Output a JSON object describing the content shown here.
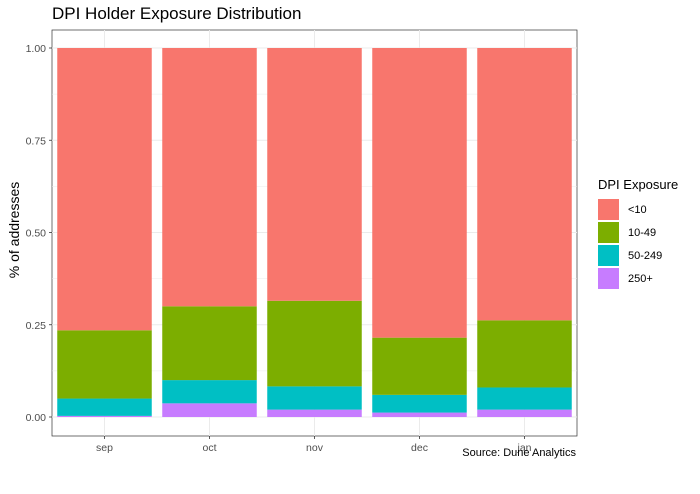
{
  "chart_data": {
    "type": "bar",
    "stacked": true,
    "title": "DPI Holder Exposure Distribution",
    "xlabel": "",
    "ylabel": "% of addresses",
    "caption": "Source: Dune Analytics",
    "categories": [
      "sep",
      "oct",
      "nov",
      "dec",
      "jan"
    ],
    "ylim": [
      0,
      1
    ],
    "yticks": [
      0,
      0.25,
      0.5,
      0.75,
      1
    ],
    "ytick_labels": [
      "0.00",
      "0.25",
      "0.50",
      "0.75",
      "1.00"
    ],
    "legend_title": "DPI Exposure",
    "legend_position": "right",
    "grid": true,
    "series": [
      {
        "name": "250+",
        "color": "#C77CFF",
        "values": [
          0.003,
          0.037,
          0.02,
          0.012,
          0.02
        ]
      },
      {
        "name": "50-249",
        "color": "#00BFC4",
        "values": [
          0.047,
          0.063,
          0.063,
          0.048,
          0.06
        ]
      },
      {
        "name": "10-49",
        "color": "#7CAE00",
        "values": [
          0.185,
          0.2,
          0.232,
          0.155,
          0.182
        ]
      },
      {
        "name": "<10",
        "color": "#F8766D",
        "values": [
          0.765,
          0.7,
          0.685,
          0.785,
          0.738
        ]
      }
    ],
    "legend_order": [
      "<10",
      "10-49",
      "50-249",
      "250+"
    ]
  }
}
